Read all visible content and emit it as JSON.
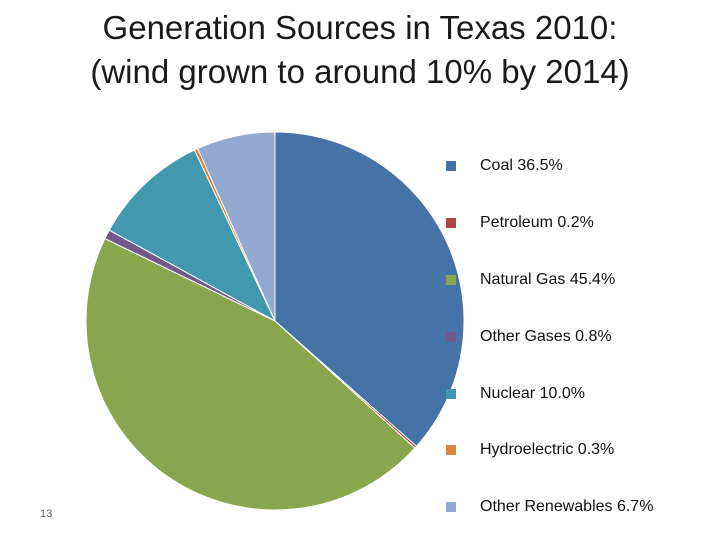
{
  "slide": {
    "title_line1": "Generation Sources in Texas 2010:",
    "title_line2": "(wind grown to around 10% by 2014)",
    "number": "13"
  },
  "chart_data": {
    "type": "pie",
    "title": "Generation Sources in Texas 2010: (wind grown to around 10% by 2014)",
    "start_angle": "12 o'clock",
    "direction": "clockwise",
    "legend_position": "right",
    "slices": [
      {
        "name": "Coal",
        "value": 36.5,
        "label": "Coal 36.5%",
        "color": "#4572A7"
      },
      {
        "name": "Petroleum",
        "value": 0.2,
        "label": "Petroleum 0.2%",
        "color": "#AA4643"
      },
      {
        "name": "Natural Gas",
        "value": 45.4,
        "label": "Natural Gas 45.4%",
        "color": "#89A54E"
      },
      {
        "name": "Other Gases",
        "value": 0.8,
        "label": "Other Gases 0.8%",
        "color": "#71588F"
      },
      {
        "name": "Nuclear",
        "value": 10.0,
        "label": "Nuclear 10.0%",
        "color": "#4198AF"
      },
      {
        "name": "Hydroelectric",
        "value": 0.3,
        "label": "Hydroelectric 0.3%",
        "color": "#DB843D"
      },
      {
        "name": "Other Renewables",
        "value": 6.7,
        "label": "Other Renewables 6.7%",
        "color": "#93A9CF"
      }
    ]
  }
}
